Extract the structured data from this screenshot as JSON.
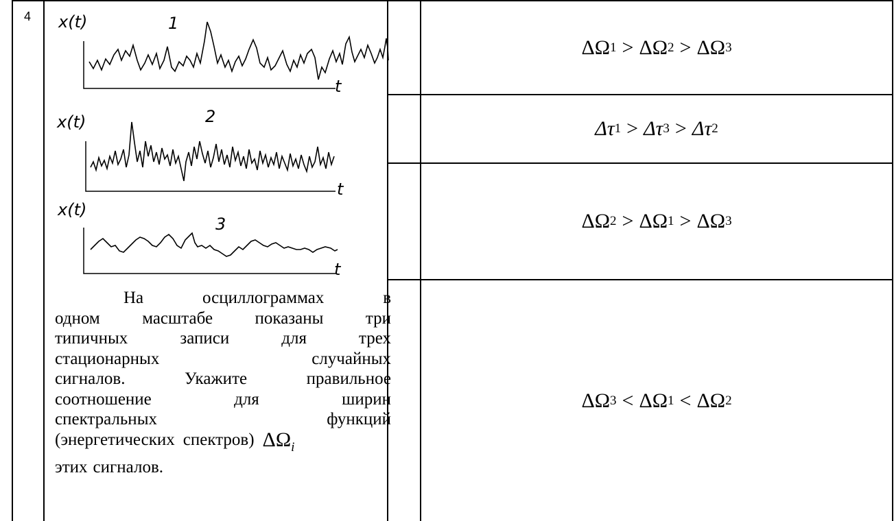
{
  "row_number": "4",
  "plots": [
    {
      "ylabel": "x(t)",
      "xlabel": "t",
      "num": "1"
    },
    {
      "ylabel": "x(t)",
      "xlabel": "t",
      "num": "2"
    },
    {
      "ylabel": "x(t)",
      "xlabel": "t",
      "num": "3"
    }
  ],
  "question_lines": [
    [
      "На",
      "осциллограммах",
      "в"
    ],
    [
      "одном",
      "масштабе",
      "показаны",
      "три"
    ],
    [
      "типичных",
      "записи",
      "для",
      "трех"
    ],
    [
      "стационарных",
      "случайных"
    ],
    [
      "сигналов.",
      "Укажите",
      "правильное"
    ],
    [
      "соотношение",
      "для",
      "ширин"
    ],
    [
      "спектральных",
      "функций"
    ],
    [
      "(энергетических",
      "спектров)"
    ],
    [
      "этих",
      "сигналов."
    ]
  ],
  "question_symbol": {
    "main": "ΔΩ",
    "sub": "i"
  },
  "answers": [
    {
      "parts": [
        [
          "ΔΩ",
          "1"
        ],
        ">",
        [
          "ΔΩ",
          "2"
        ],
        ">",
        [
          "ΔΩ",
          "3"
        ]
      ]
    },
    {
      "parts": [
        [
          "Δτ",
          "1"
        ],
        ">",
        [
          "Δτ",
          "3"
        ],
        ">",
        [
          "Δτ",
          "2"
        ]
      ]
    },
    {
      "parts": [
        [
          "ΔΩ",
          "2"
        ],
        ">",
        [
          "ΔΩ",
          "1"
        ],
        ">",
        [
          "ΔΩ",
          "3"
        ]
      ]
    },
    {
      "parts": [
        [
          "ΔΩ",
          "3"
        ],
        "<",
        [
          "ΔΩ",
          "1"
        ],
        "<",
        [
          "ΔΩ",
          "2"
        ]
      ]
    }
  ]
}
